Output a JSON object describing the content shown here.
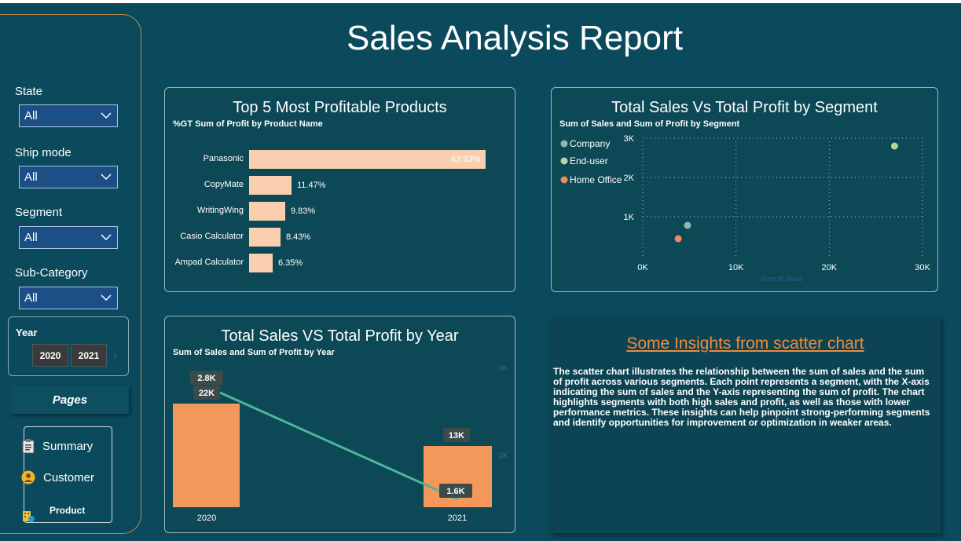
{
  "title": "Sales Analysis Report",
  "filters": [
    {
      "label": "State",
      "value": "All"
    },
    {
      "label": "Ship mode",
      "value": "All"
    },
    {
      "label": "Segment",
      "value": "All"
    },
    {
      "label": "Sub-Category",
      "value": "All"
    }
  ],
  "year_slicer": {
    "label": "Year",
    "options": [
      "2020",
      "2021"
    ]
  },
  "pages": {
    "title": "Pages",
    "items": [
      {
        "label": "Summary",
        "icon": "clipboard-icon"
      },
      {
        "label": "Customer",
        "icon": "user-icon"
      },
      {
        "label": "Product",
        "icon": "building-icon"
      }
    ]
  },
  "top5": {
    "title": "Top 5 Most Profitable Products",
    "subtitle": "%GT Sum of Profit by Product Name",
    "labels": [
      "63.93%",
      "11.47%",
      "9.83%",
      "8.43%",
      "6.35%"
    ]
  },
  "scatter": {
    "title": "Total Sales Vs Total Profit by Segment",
    "subtitle": "Sum of Sales and Sum of Profit by Segment",
    "legend": [
      "Company",
      "End-user",
      "Home Office"
    ],
    "x_ticks": [
      "0K",
      "10K",
      "20K",
      "30K"
    ],
    "y_ticks": [
      "1K",
      "2K",
      "3K"
    ],
    "x_axis_title": "Sum of Sales"
  },
  "yearchart": {
    "title": "Total Sales VS Total Profit by Year",
    "subtitle": "Sum of Sales and Sum of Profit by Year",
    "sales_labels": [
      "22K",
      "13K"
    ],
    "profit_labels": [
      "2.8K",
      "1.6K"
    ],
    "right_ticks": [
      "3K",
      "2K"
    ]
  },
  "insights": {
    "title": "Some Insights from scatter chart ",
    "text": "The scatter chart illustrates the relationship between the sum of sales and the sum of profit across various segments. Each point represents a segment, with the X-axis indicating the sum of sales and the Y-axis representing the sum of profit. The chart highlights segments with both high sales and profit, as well as those with lower performance metrics. These insights can help pinpoint strong-performing segments and identify opportunities for improvement or optimization in weaker areas."
  },
  "colors": {
    "background": "#0b4a5c",
    "bar": "#f9cfb0",
    "sales_bar": "#f4975a",
    "profit_line": "#4fb59a",
    "company": "#8fb7b0",
    "end_user": "#b7d59a",
    "home_office": "#f08a5c",
    "insight_title": "#f08a3c"
  },
  "chart_data": [
    {
      "type": "bar",
      "title": "Top 5 Most Profitable Products",
      "subtitle": "%GT Sum of Profit by Product Name",
      "categories": [
        "Panasonic",
        "CopyMate",
        "WritingWing",
        "Casio Calculator",
        "Ampad Calculator"
      ],
      "values": [
        63.93,
        11.47,
        9.83,
        8.43,
        6.35
      ],
      "orientation": "horizontal"
    },
    {
      "type": "scatter",
      "title": "Total Sales Vs Total Profit by Segment",
      "subtitle": "Sum of Sales and Sum of Profit by Segment",
      "series": [
        {
          "name": "Company",
          "x": [
            4800
          ],
          "y": [
            780
          ]
        },
        {
          "name": "End-user",
          "x": [
            27000
          ],
          "y": [
            2800
          ]
        },
        {
          "name": "Home Office",
          "x": [
            3800
          ],
          "y": [
            440
          ]
        }
      ],
      "xlim": [
        0,
        30000
      ],
      "ylim": [
        0,
        3000
      ],
      "xlabel": "Sum of Sales",
      "grid": true,
      "legend": "top-left"
    },
    {
      "type": "bar",
      "title": "Total Sales VS Total Profit by Year",
      "subtitle": "Sum of Sales and Sum of Profit by Year",
      "categories": [
        "2020",
        "2021"
      ],
      "series": [
        {
          "name": "Sum of Sales",
          "type": "bar",
          "values": [
            22000,
            13000
          ]
        },
        {
          "name": "Sum of Profit",
          "type": "line",
          "values": [
            2800,
            1600
          ]
        }
      ]
    }
  ]
}
